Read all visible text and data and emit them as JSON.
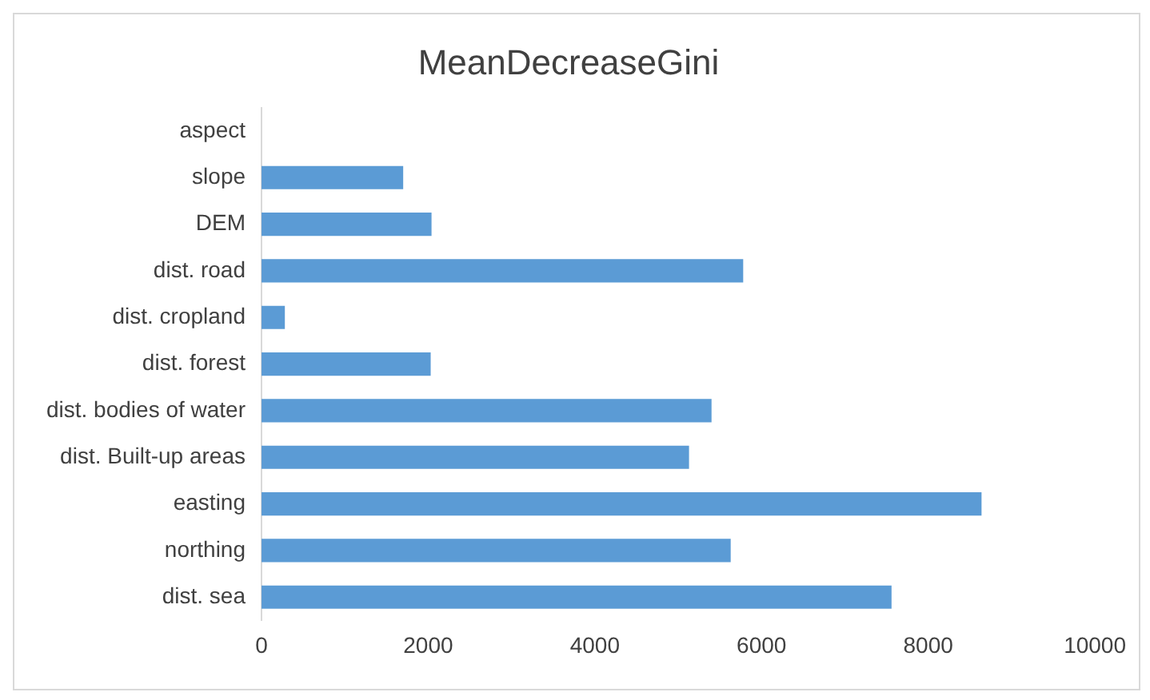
{
  "chart_data": {
    "type": "bar",
    "orientation": "horizontal",
    "title": "MeanDecreaseGini",
    "categories": [
      "aspect",
      "slope",
      "DEM",
      "dist. road",
      "dist. cropland",
      "dist. forest",
      "dist. bodies of water",
      "dist. Built-up areas",
      "easting",
      "northing",
      "dist. sea"
    ],
    "values": [
      0,
      1700,
      2040,
      5780,
      280,
      2030,
      5400,
      5130,
      8640,
      5630,
      7560
    ],
    "color": "#5b9bd5",
    "xlim": [
      0,
      10000
    ],
    "xticks": [
      0,
      2000,
      4000,
      6000,
      8000,
      10000
    ],
    "grid": false,
    "legend": false
  }
}
